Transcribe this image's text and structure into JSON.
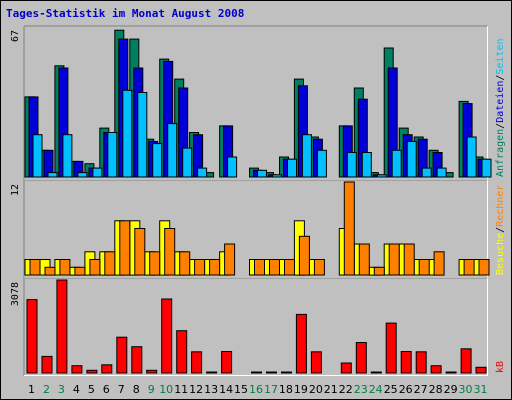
{
  "colors": {
    "hits": "#008060",
    "files": "#0000d8",
    "pages": "#00c0ff",
    "visits": "#ffff00",
    "sites": "#ff8000",
    "kb": "#ff0000",
    "weekday": "#000000",
    "weekend": "#008040",
    "background": "#c0c0c0"
  },
  "chart_data": {
    "type": "bar",
    "title": "Tages-Statistik im Monat August 2008",
    "categories": [
      "1",
      "2",
      "3",
      "4",
      "5",
      "6",
      "7",
      "8",
      "9",
      "10",
      "11",
      "12",
      "13",
      "14",
      "15",
      "16",
      "17",
      "18",
      "19",
      "20",
      "21",
      "22",
      "23",
      "24",
      "25",
      "26",
      "27",
      "28",
      "29",
      "30",
      "31"
    ],
    "weekend_days": [
      "2",
      "3",
      "9",
      "10",
      "16",
      "17",
      "23",
      "24",
      "30",
      "31"
    ],
    "panels": [
      {
        "name": "hits-files-pages",
        "ymax_label": "67",
        "ylim": [
          0,
          67
        ],
        "legend": [
          "Anfragen",
          "/",
          "Dateien",
          "/",
          "Seiten"
        ],
        "series": [
          {
            "name": "Anfragen",
            "values": [
              36,
              12,
              50,
              7,
              6,
              22,
              66,
              62,
              17,
              53,
              44,
              20,
              2,
              23,
              0,
              4,
              2,
              9,
              44,
              18,
              0,
              23,
              40,
              2,
              58,
              22,
              18,
              12,
              2,
              34,
              9
            ]
          },
          {
            "name": "Dateien",
            "values": [
              36,
              12,
              49,
              7,
              4,
              20,
              62,
              49,
              16,
              52,
              40,
              19,
              0,
              23,
              0,
              3,
              1,
              8,
              41,
              17,
              0,
              23,
              35,
              1,
              49,
              19,
              17,
              11,
              0,
              33,
              8
            ]
          },
          {
            "name": "Seiten",
            "values": [
              19,
              2,
              19,
              2,
              4,
              20,
              39,
              38,
              15,
              24,
              13,
              4,
              0,
              9,
              0,
              3,
              1,
              8,
              19,
              12,
              0,
              11,
              11,
              1,
              12,
              16,
              4,
              4,
              0,
              18,
              8
            ]
          }
        ]
      },
      {
        "name": "visits-sites",
        "ymax_label": "12",
        "ylim": [
          0,
          12
        ],
        "legend": [
          "Besuche",
          "/",
          "Rechner"
        ],
        "series": [
          {
            "name": "Besuche",
            "values": [
              2,
              2,
              2,
              1,
              3,
              3,
              7,
              7,
              3,
              7,
              3,
              2,
              2,
              3,
              0,
              2,
              2,
              2,
              7,
              2,
              0,
              6,
              4,
              1,
              4,
              4,
              2,
              2,
              0,
              2,
              2
            ]
          },
          {
            "name": "Rechner",
            "values": [
              2,
              1,
              2,
              1,
              2,
              3,
              7,
              6,
              3,
              6,
              3,
              2,
              2,
              4,
              0,
              2,
              2,
              2,
              5,
              2,
              0,
              12,
              4,
              1,
              4,
              4,
              2,
              3,
              0,
              2,
              2
            ]
          }
        ]
      },
      {
        "name": "kb",
        "ymax_label": "3078",
        "ylim": [
          0,
          3078
        ],
        "legend": [
          "kB"
        ],
        "series": [
          {
            "name": "kB",
            "values": [
              2430,
              550,
              3078,
              240,
              90,
              270,
              1185,
              870,
              90,
              2450,
              1400,
              700,
              20,
              710,
              0,
              20,
              20,
              20,
              1940,
              700,
              0,
              330,
              1010,
              30,
              1650,
              710,
              700,
              240,
              20,
              800,
              190
            ]
          }
        ]
      }
    ]
  }
}
